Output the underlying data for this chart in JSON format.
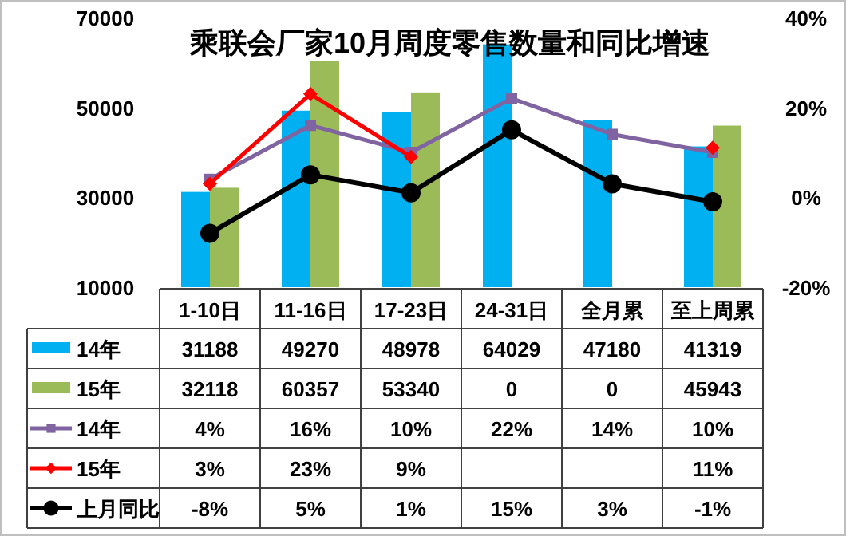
{
  "chart_data": {
    "type": "bar",
    "title": "乘联会厂家10月周度零售数量和同比增速",
    "categories": [
      "1-10日",
      "11-16日",
      "17-23日",
      "24-31日",
      "全月累",
      "至上周累"
    ],
    "ylim": [
      10000,
      70000
    ],
    "yticks": [
      10000,
      30000,
      50000,
      70000
    ],
    "y2lim": [
      -20,
      40
    ],
    "y2ticks": [
      {
        "value": -20,
        "label": "-20%"
      },
      {
        "value": 0,
        "label": "0%"
      },
      {
        "value": 20,
        "label": "20%"
      },
      {
        "value": 40,
        "label": "40%"
      }
    ],
    "legend": "bottom",
    "grid": false,
    "series": [
      {
        "name": "14年",
        "color": "#00b0f0",
        "values": [
          31188,
          49270,
          48978,
          64029,
          47180,
          41319
        ],
        "value_labels": [
          "31188",
          "49270",
          "48978",
          "64029",
          "47180",
          "41319"
        ]
      },
      {
        "name": "15年",
        "color": "#9bbb59",
        "values": [
          32118,
          60357,
          53340,
          null,
          null,
          45943
        ],
        "value_labels": [
          "32118",
          "60357",
          "53340",
          "0",
          "0",
          "45943"
        ]
      },
      {
        "name": "14年",
        "type": "line",
        "axis": "y2",
        "color": "#8064a2",
        "marker": "square",
        "values": [
          4,
          16,
          10,
          22,
          14,
          10
        ],
        "value_labels": [
          "4%",
          "16%",
          "10%",
          "22%",
          "14%",
          "10%"
        ]
      },
      {
        "name": "15年",
        "type": "line",
        "axis": "y2",
        "color": "#ff0000",
        "marker": "diamond",
        "values": [
          3,
          23,
          9,
          null,
          null,
          11
        ],
        "value_labels": [
          "3%",
          "23%",
          "9%",
          null,
          null,
          "11%"
        ]
      },
      {
        "name": "上月同比",
        "type": "line",
        "axis": "y2",
        "color": "#000000",
        "marker": "circle",
        "values": [
          -8,
          5,
          1,
          15,
          3,
          -1
        ],
        "value_labels": [
          "-8%",
          "5%",
          "1%",
          "15%",
          "3%",
          "-1%"
        ]
      }
    ]
  }
}
